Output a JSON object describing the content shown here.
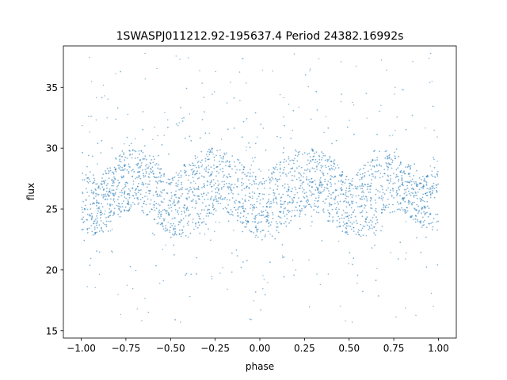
{
  "chart_data": {
    "type": "scatter",
    "title": "1SWASPJ011212.92-195637.4 Period 24382.16992s",
    "xlabel": "phase",
    "ylabel": "flux",
    "xlim": [
      -1.1,
      1.1
    ],
    "ylim": [
      14.4,
      38.4
    ],
    "xticks": [
      -1.0,
      -0.75,
      -0.5,
      -0.25,
      0.0,
      0.25,
      0.5,
      0.75,
      1.0
    ],
    "xtick_labels": [
      "−1.00",
      "−0.75",
      "−0.50",
      "−0.25",
      "0.00",
      "0.25",
      "0.50",
      "0.75",
      "1.00"
    ],
    "yticks": [
      15,
      20,
      25,
      30,
      35
    ],
    "ytick_labels": [
      "15",
      "20",
      "25",
      "30",
      "35"
    ],
    "grid": false,
    "legend": "none",
    "point_color": "#1f77b4",
    "series": [
      {
        "x": [
          -1.0,
          -0.9,
          -0.8,
          -0.7,
          -0.6,
          -0.5,
          -0.4,
          -0.3,
          -0.2,
          -0.1,
          0.0,
          0.1,
          0.2,
          0.3,
          0.4,
          0.5,
          0.6,
          0.7,
          0.8,
          0.9,
          1.0
        ],
        "upper_envelope": [
          28.2,
          27.6,
          29.5,
          30.2,
          29.5,
          27.6,
          29.2,
          30.2,
          30.0,
          29.0,
          28.0,
          29.0,
          30.0,
          30.2,
          29.5,
          27.6,
          29.0,
          30.0,
          29.6,
          27.8,
          28.2
        ],
        "lower_envelope": [
          22.8,
          22.8,
          24.2,
          25.0,
          24.0,
          22.6,
          22.4,
          24.0,
          24.8,
          23.6,
          22.4,
          22.6,
          24.2,
          24.8,
          23.6,
          22.6,
          22.6,
          24.4,
          24.8,
          23.4,
          22.8
        ],
        "y_min": 15.6,
        "y_max": 37.8
      }
    ]
  }
}
